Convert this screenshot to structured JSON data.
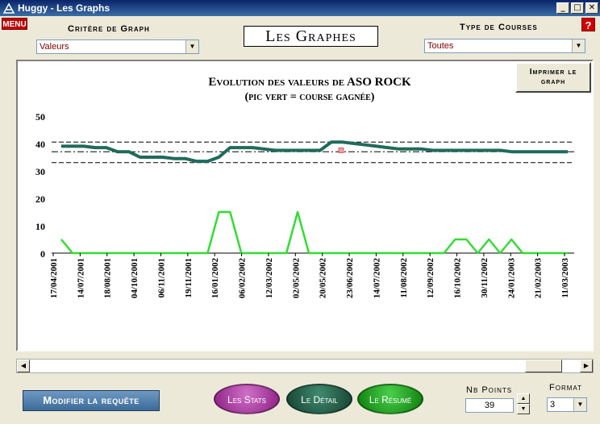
{
  "window": {
    "title": "Huggy - Les Graphs",
    "minimize": "_",
    "maximize": "□",
    "close": "✕"
  },
  "menu_label": "MENU",
  "help_label": "?",
  "criteria": {
    "label": "Critère de Graph",
    "value": "Valeurs"
  },
  "page_title": "Les Graphes",
  "course_type": {
    "label": "Type de Courses",
    "value": "Toutes"
  },
  "print_button": "Imprimer le graph",
  "chart_data": {
    "type": "line",
    "title": "Evolution des valeurs de ASO ROCK",
    "subtitle": "(pic vert = course gagnée)",
    "ylim": [
      0,
      50
    ],
    "yticks": [
      0,
      10,
      20,
      30,
      40,
      50
    ],
    "reference_lines": [
      40.5,
      37,
      33
    ],
    "x_labels": [
      "17/04/2001",
      "14/07/2001",
      "18/08/2001",
      "04/10/2001",
      "06/11/2001",
      "19/11/2001",
      "16/01/2002",
      "06/02/2002",
      "12/03/2002",
      "02/05/2002",
      "20/05/2002",
      "23/06/2002",
      "14/07/2002",
      "11/08/2002",
      "12/09/2002",
      "16/10/2002",
      "30/11/2002",
      "24/01/2003",
      "21/02/2003",
      "11/03/2003"
    ],
    "series": [
      {
        "color": "#1f6b5c",
        "values": [
          39,
          39,
          39,
          38.5,
          38.5,
          37,
          37,
          35,
          35,
          35,
          34.5,
          34.5,
          33.5,
          33.5,
          35,
          38.5,
          38.5,
          38.5,
          38,
          37.5,
          37.5,
          37.5,
          37.5,
          37.5,
          40.5,
          40.5,
          40,
          39.5,
          39,
          38.5,
          38,
          38,
          38,
          37.5,
          37.5,
          37.5,
          37.5,
          37.5,
          37.5,
          37.5,
          37,
          37,
          37,
          37,
          37,
          37
        ]
      },
      {
        "color": "#33dd33",
        "values": [
          5,
          0,
          0,
          0,
          0,
          0,
          0,
          0,
          0,
          0,
          0,
          0,
          0,
          0,
          15,
          15,
          0,
          0,
          0,
          0,
          0,
          15,
          0,
          0,
          0,
          0,
          0,
          0,
          0,
          0,
          0,
          0,
          0,
          0,
          0,
          5,
          5,
          0,
          5,
          0,
          5,
          0,
          0,
          0,
          0,
          0
        ]
      }
    ]
  },
  "modify_button": "Modifier la requête",
  "stats_button": "Les Stats",
  "detail_button": "Le Détail",
  "resume_button": "Le Résumé",
  "nb_points": {
    "label": "Nb Points",
    "value": "39"
  },
  "format": {
    "label": "Format",
    "value": "3"
  }
}
